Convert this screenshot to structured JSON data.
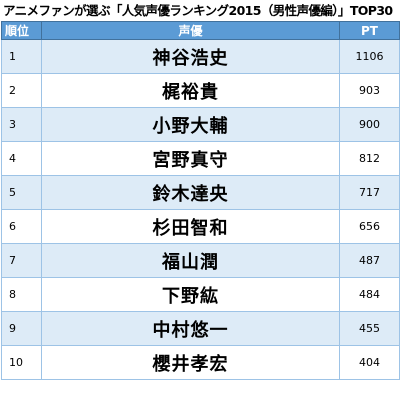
{
  "title": "アニメファンが選ぶ「人気声優ランキング2015（男性声優編）」TOP30",
  "headers": {
    "rank": "順位",
    "name": "声優",
    "points": "PT"
  },
  "rows": [
    {
      "rank": "1",
      "name": "神谷浩史",
      "points": "1106"
    },
    {
      "rank": "2",
      "name": "梶裕貴",
      "points": "903"
    },
    {
      "rank": "3",
      "name": "小野大輔",
      "points": "900"
    },
    {
      "rank": "4",
      "name": "宮野真守",
      "points": "812"
    },
    {
      "rank": "5",
      "name": "鈴木達央",
      "points": "717"
    },
    {
      "rank": "6",
      "name": "杉田智和",
      "points": "656"
    },
    {
      "rank": "7",
      "name": "福山潤",
      "points": "487"
    },
    {
      "rank": "8",
      "name": "下野紘",
      "points": "484"
    },
    {
      "rank": "9",
      "name": "中村悠一",
      "points": "455"
    },
    {
      "rank": "10",
      "name": "櫻井孝宏",
      "points": "404"
    }
  ],
  "colors": {
    "header_bg": "#5b9bd5",
    "header_text": "#ffffff",
    "row_alt_bg": "#ddebf7",
    "row_bg": "#ffffff",
    "border": "#9dc3e6"
  }
}
